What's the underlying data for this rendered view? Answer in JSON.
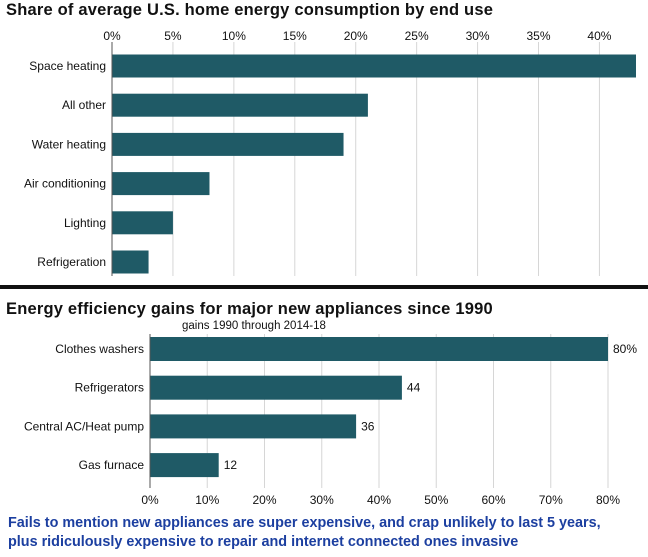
{
  "chart_data": [
    {
      "type": "bar",
      "orientation": "horizontal",
      "title": "Share of average U.S. home energy consumption by end use",
      "categories": [
        "Space heating",
        "All other",
        "Water heating",
        "Air conditioning",
        "Lighting",
        "Refrigeration"
      ],
      "values": [
        43,
        21,
        19,
        8,
        5,
        3
      ],
      "xlim": [
        0,
        43
      ],
      "ticks": [
        0,
        5,
        10,
        15,
        20,
        25,
        30,
        35,
        40
      ],
      "tick_labels": [
        "0%",
        "5%",
        "10%",
        "15%",
        "20%",
        "25%",
        "30%",
        "35%",
        "40%"
      ],
      "axis_position": "top",
      "bar_color": "#1f5a66",
      "grid": true
    },
    {
      "type": "bar",
      "orientation": "horizontal",
      "title": "Energy efficiency gains for major new appliances since 1990",
      "subtitle": "gains 1990 through 2014-18",
      "categories": [
        "Clothes washers",
        "Refrigerators",
        "Central AC/Heat pump",
        "Gas furnace"
      ],
      "values": [
        80,
        44,
        36,
        12
      ],
      "data_labels": [
        "80%",
        "44",
        "36",
        "12"
      ],
      "xlim": [
        0,
        80
      ],
      "ticks": [
        0,
        10,
        20,
        30,
        40,
        50,
        60,
        70,
        80
      ],
      "tick_labels": [
        "0%",
        "10%",
        "20%",
        "30%",
        "40%",
        "50%",
        "60%",
        "70%",
        "80%"
      ],
      "axis_position": "bottom",
      "bar_color": "#1f5a66",
      "grid": true
    }
  ],
  "caption": {
    "line1": "Fails to mention new appliances are super expensive, and crap unlikely to last 5 years,",
    "line2": "plus ridiculously expensive to repair and internet connected ones invasive",
    "color": "#1c3fa0"
  }
}
